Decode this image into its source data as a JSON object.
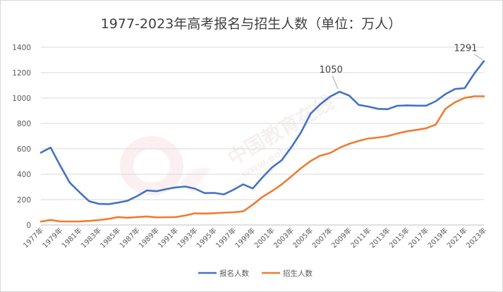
{
  "chart_data": {
    "type": "line",
    "title": "1977-2023年高考报名与招生人数（单位：万人）",
    "xlabel": "",
    "ylabel": "",
    "ylim": [
      0,
      1400
    ],
    "yticks": [
      0,
      200,
      400,
      600,
      800,
      1000,
      1200,
      1400
    ],
    "grid": true,
    "legend_position": "bottom",
    "x": [
      1977,
      1978,
      1979,
      1980,
      1981,
      1982,
      1983,
      1984,
      1985,
      1986,
      1987,
      1988,
      1989,
      1990,
      1991,
      1992,
      1993,
      1994,
      1995,
      1996,
      1997,
      1998,
      1999,
      2000,
      2001,
      2002,
      2003,
      2004,
      2005,
      2006,
      2007,
      2008,
      2009,
      2010,
      2011,
      2012,
      2013,
      2014,
      2015,
      2016,
      2017,
      2018,
      2019,
      2020,
      2021,
      2022,
      2023
    ],
    "x_tick_labels": [
      "1977年",
      "1979年",
      "1981年",
      "1983年",
      "1985年",
      "1987年",
      "1989年",
      "1991年",
      "1993年",
      "1995年",
      "1997年",
      "1999年",
      "2001年",
      "2003年",
      "2005年",
      "2007年",
      "2009年",
      "2011年",
      "2013年",
      "2015年",
      "2017年",
      "2019年",
      "2021年",
      "2023年"
    ],
    "series": [
      {
        "name": "报名人数",
        "color": "#4472c4",
        "values": [
          570,
          610,
          468,
          333,
          259,
          187,
          167,
          164,
          176,
          191,
          228,
          272,
          266,
          283,
          296,
          303,
          286,
          251,
          253,
          241,
          278,
          320,
          288,
          375,
          454,
          510,
          613,
          729,
          877,
          950,
          1010,
          1050,
          1020,
          946,
          933,
          915,
          912,
          939,
          942,
          940,
          940,
          975,
          1031,
          1071,
          1078,
          1193,
          1291
        ]
      },
      {
        "name": "招生人数",
        "color": "#ed7d31",
        "values": [
          27,
          40,
          28,
          28,
          28,
          32,
          39,
          48,
          62,
          57,
          62,
          67,
          60,
          61,
          62,
          75,
          92,
          90,
          93,
          97,
          100,
          108,
          160,
          221,
          268,
          320,
          382,
          447,
          504,
          546,
          566,
          608,
          639,
          662,
          681,
          689,
          700,
          721,
          738,
          749,
          762,
          791,
          915,
          967,
          1001,
          1014,
          1014
        ]
      }
    ],
    "annotations": [
      {
        "text": "1050",
        "year": 2008,
        "value": 1050
      },
      {
        "text": "1291",
        "year": 2023,
        "value": 1291
      }
    ],
    "watermark": "中国教育在线 www.eol.cn"
  }
}
